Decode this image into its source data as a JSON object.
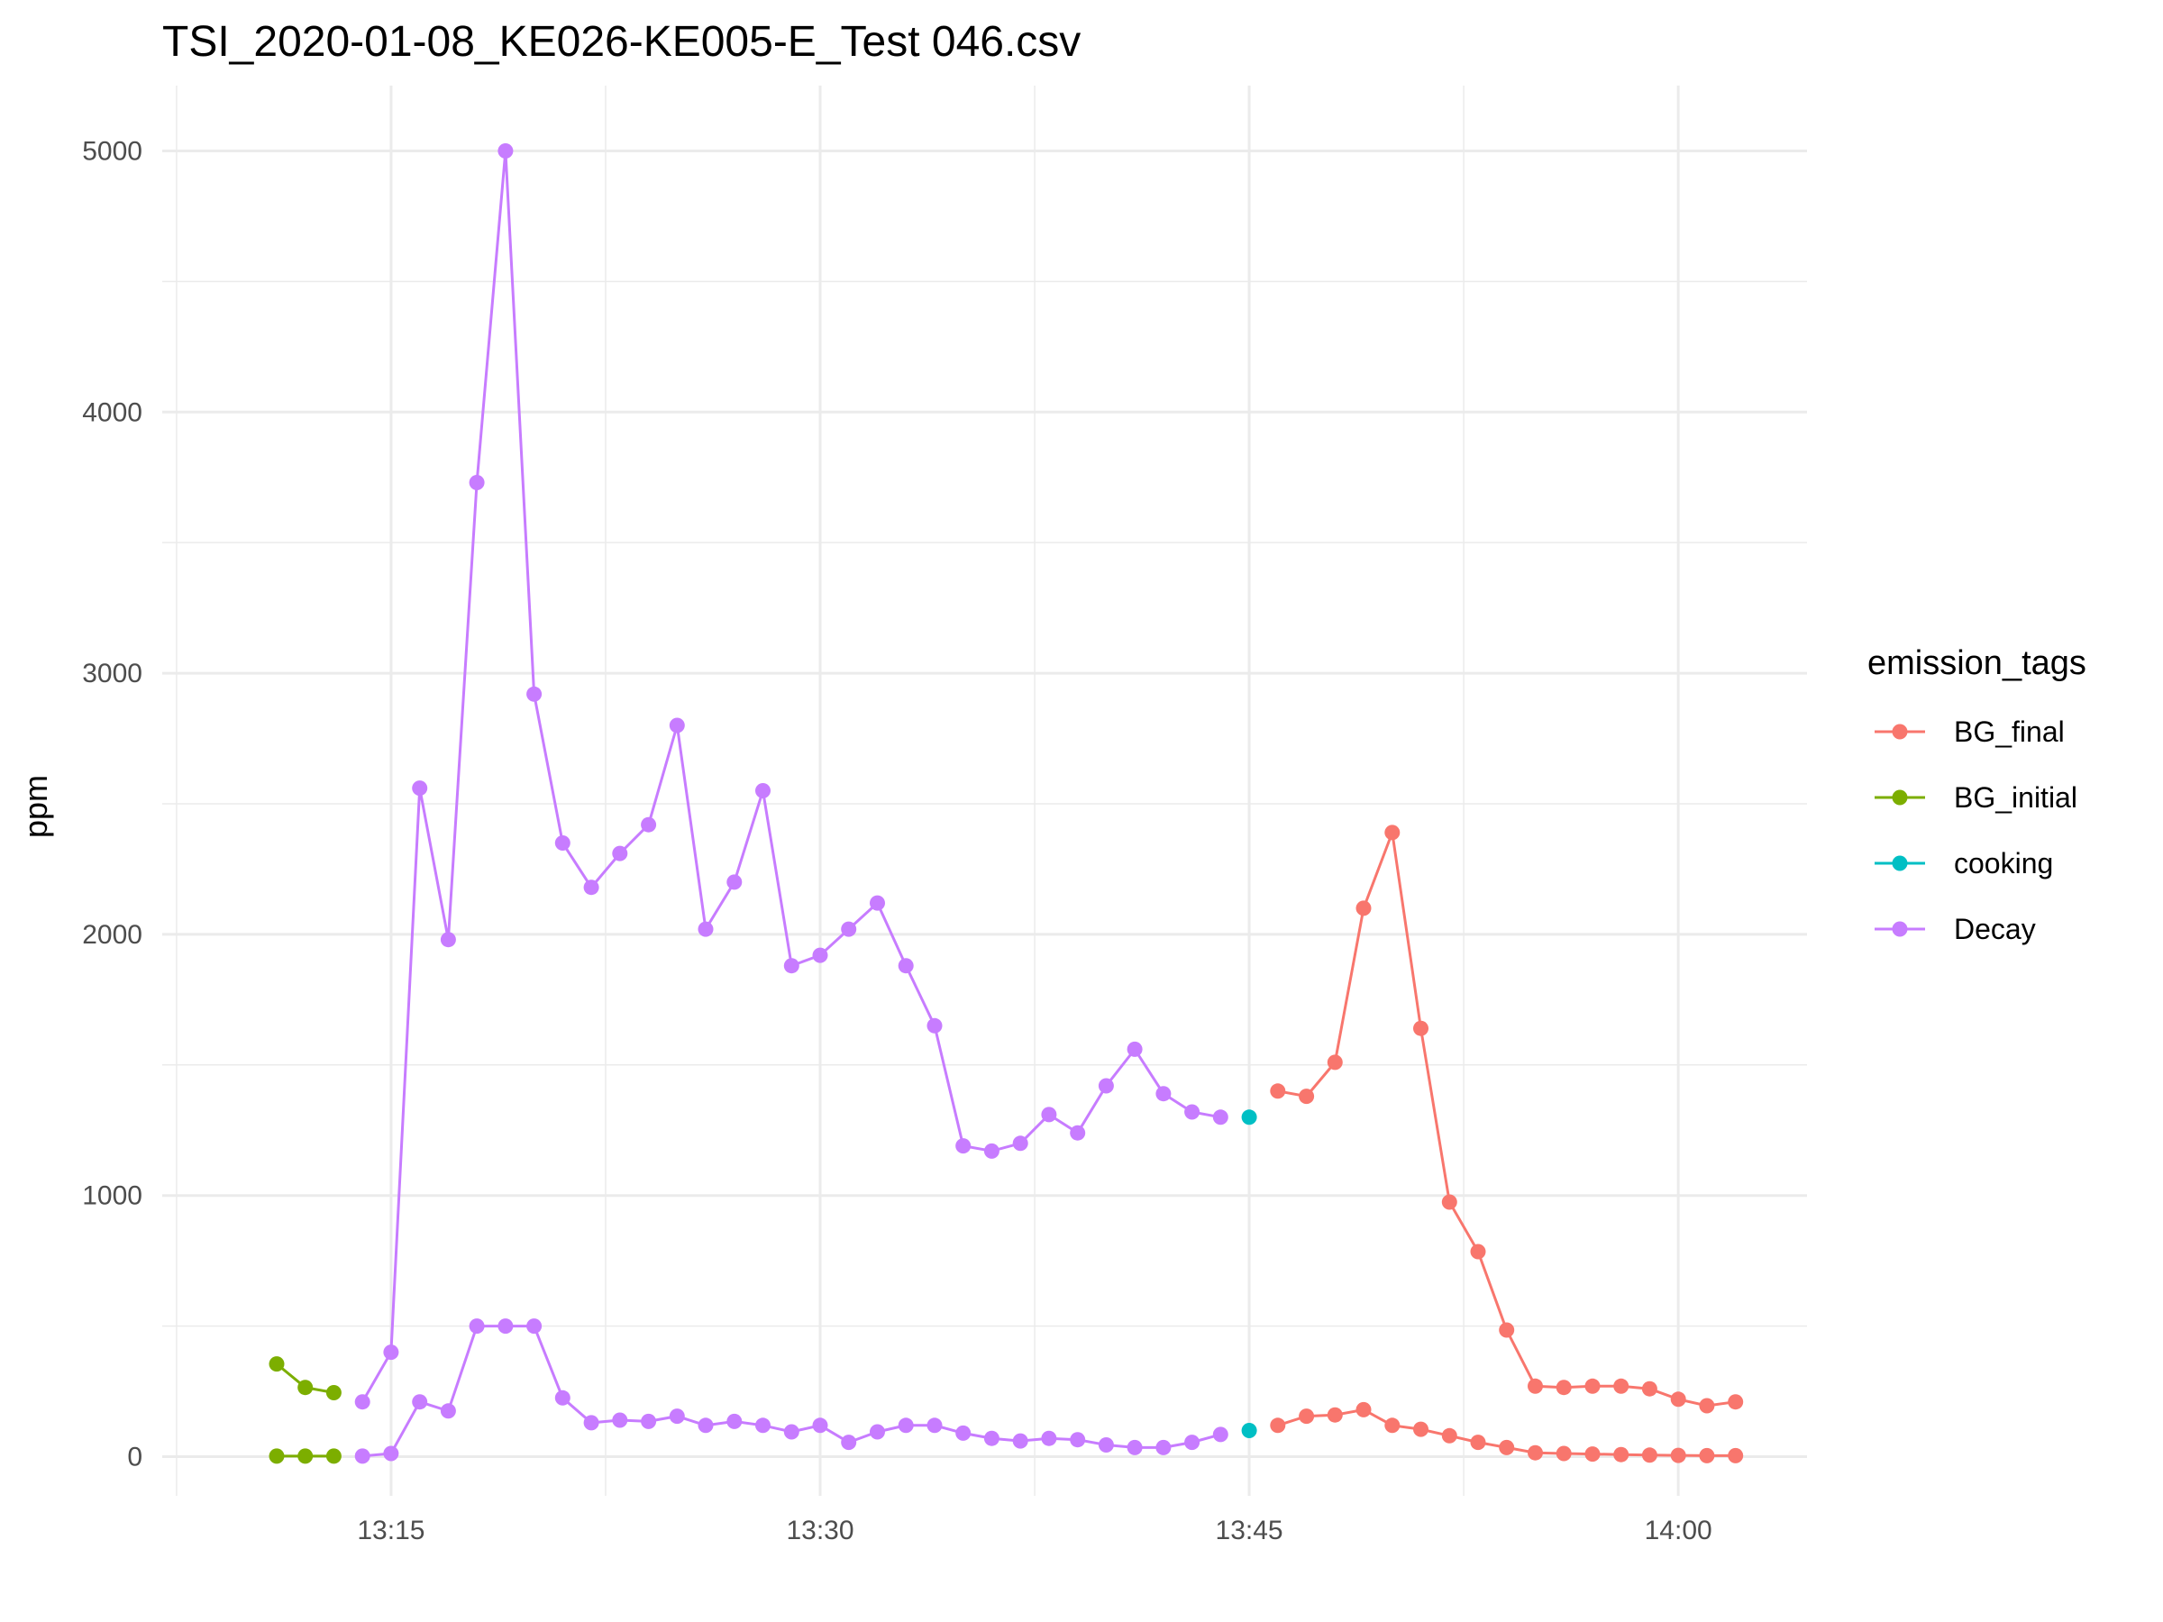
{
  "chart_data": {
    "type": "line",
    "title": "TSI_2020-01-08_KE026-KE005-E_Test 046.csv",
    "xlabel": "",
    "ylabel": "ppm",
    "ylim": [
      -150,
      5250
    ],
    "xlim": [
      "13:07:00",
      "14:04:30"
    ],
    "x_ticks": [
      "13:15",
      "13:30",
      "13:45",
      "14:00"
    ],
    "y_ticks": [
      0,
      1000,
      2000,
      3000,
      4000,
      5000
    ],
    "grid": true,
    "legend": {
      "title": "emission_tags",
      "position": "right"
    },
    "series": [
      {
        "name": "BG_final",
        "color": "#F8766D",
        "traces": [
          {
            "x": [
              "13:46",
              "13:47",
              "13:48",
              "13:49",
              "13:50",
              "13:51",
              "13:52",
              "13:53",
              "13:54",
              "13:55",
              "13:56",
              "13:57",
              "13:58",
              "13:59",
              "14:00",
              "14:01",
              "14:02"
            ],
            "y": [
              1400,
              1380,
              1510,
              2100,
              2390,
              1640,
              975,
              785,
              485,
              270,
              265,
              270,
              270,
              260,
              220,
              195,
              210
            ]
          },
          {
            "x": [
              "13:46",
              "13:47",
              "13:48",
              "13:49",
              "13:50",
              "13:51",
              "13:52",
              "13:53",
              "13:54",
              "13:55",
              "13:56",
              "13:57",
              "13:58",
              "13:59",
              "14:00",
              "14:01",
              "14:02"
            ],
            "y": [
              120,
              155,
              160,
              180,
              120,
              105,
              80,
              55,
              35,
              15,
              12,
              10,
              8,
              6,
              5,
              4,
              4
            ]
          }
        ]
      },
      {
        "name": "BG_initial",
        "color": "#7CAE00",
        "traces": [
          {
            "x": [
              "13:11",
              "13:12",
              "13:13"
            ],
            "y": [
              355,
              265,
              245
            ]
          },
          {
            "x": [
              "13:11",
              "13:12",
              "13:13"
            ],
            "y": [
              2,
              2,
              2
            ]
          }
        ]
      },
      {
        "name": "cooking",
        "color": "#00BFC4",
        "traces": [
          {
            "x": [
              "13:45"
            ],
            "y": [
              1300
            ]
          },
          {
            "x": [
              "13:45"
            ],
            "y": [
              100
            ]
          }
        ]
      },
      {
        "name": "Decay",
        "color": "#C77CFF",
        "traces": [
          {
            "x": [
              "13:14",
              "13:15",
              "13:16",
              "13:17",
              "13:18",
              "13:19",
              "13:20",
              "13:21",
              "13:22",
              "13:23",
              "13:24",
              "13:25",
              "13:26",
              "13:27",
              "13:28",
              "13:29",
              "13:30",
              "13:31",
              "13:32",
              "13:33",
              "13:34",
              "13:35",
              "13:36",
              "13:37",
              "13:38",
              "13:39",
              "13:40",
              "13:41",
              "13:42",
              "13:43",
              "13:44"
            ],
            "y": [
              210,
              400,
              2560,
              1980,
              3730,
              5000,
              2920,
              2350,
              2180,
              2310,
              2420,
              2800,
              2020,
              2200,
              2550,
              1880,
              1920,
              2020,
              2120,
              1880,
              1650,
              1190,
              1170,
              1200,
              1310,
              1240,
              1420,
              1560,
              1390,
              1320,
              1300
            ]
          },
          {
            "x": [
              "13:14",
              "13:15",
              "13:16",
              "13:17",
              "13:18",
              "13:19",
              "13:20",
              "13:21",
              "13:22",
              "13:23",
              "13:24",
              "13:25",
              "13:26",
              "13:27",
              "13:28",
              "13:29",
              "13:30",
              "13:31",
              "13:32",
              "13:33",
              "13:34",
              "13:35",
              "13:36",
              "13:37",
              "13:38",
              "13:39",
              "13:40",
              "13:41",
              "13:42",
              "13:43",
              "13:44"
            ],
            "y": [
              2,
              12,
              210,
              175,
              500,
              500,
              500,
              225,
              130,
              140,
              135,
              155,
              120,
              135,
              120,
              95,
              120,
              55,
              95,
              120,
              120,
              90,
              70,
              60,
              70,
              65,
              45,
              35,
              35,
              55,
              85
            ]
          }
        ]
      }
    ]
  }
}
